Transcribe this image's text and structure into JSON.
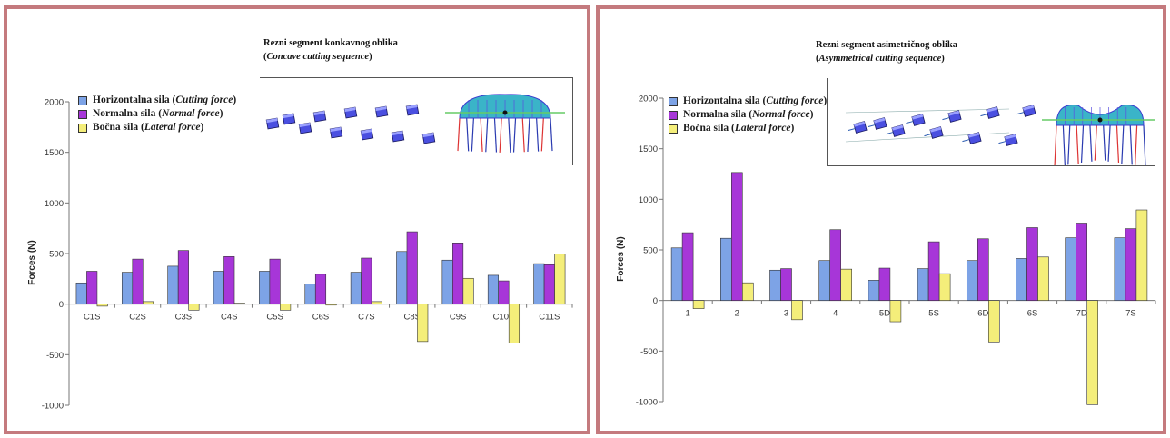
{
  "colors": {
    "horizontal": "#7da3e6",
    "normal": "#a736d8",
    "lateral": "#f4ee7a",
    "border": "#c47a7e"
  },
  "chart_data": [
    {
      "type": "bar",
      "inset": {
        "title": "Rezni segment konkavnog oblika",
        "subtitle_open": "(",
        "subtitle": "Concave cutting sequence",
        "subtitle_close": ")"
      },
      "legend": [
        {
          "label": "Horizontalna sila",
          "label_italic": "Cutting force"
        },
        {
          "label": "Normalna sila",
          "label_italic": "Normal force"
        },
        {
          "label": "Bočna sila",
          "label_italic": "Lateral force"
        }
      ],
      "ylabel": "Forces (N)",
      "ylim": [
        -1000,
        2000
      ],
      "yticks": [
        -1000,
        -500,
        0,
        500,
        1000,
        1500,
        2000
      ],
      "categories": [
        "C1S",
        "C2S",
        "C3S",
        "C4S",
        "C5S",
        "C6S",
        "C7S",
        "C8S",
        "C9S",
        "C10S",
        "C11S"
      ],
      "series": [
        {
          "name": "Horizontalna sila (Cutting force)",
          "values": [
            210,
            315,
            375,
            325,
            325,
            200,
            315,
            520,
            435,
            285,
            400
          ]
        },
        {
          "name": "Normalna sila (Normal force)",
          "values": [
            325,
            445,
            530,
            470,
            445,
            295,
            455,
            715,
            605,
            230,
            390
          ]
        },
        {
          "name": "Bočna sila (Lateral force)",
          "values": [
            -20,
            25,
            -60,
            10,
            -60,
            -10,
            25,
            -370,
            255,
            -385,
            495
          ]
        }
      ]
    },
    {
      "type": "bar",
      "inset": {
        "title": "Rezni segment asimetričnog oblika",
        "subtitle_open": "(",
        "subtitle": "Asymmetrical cutting sequence",
        "subtitle_close": ")"
      },
      "legend": [
        {
          "label": "Horizontalna sila",
          "label_italic": "Cutting force"
        },
        {
          "label": "Normalna sila",
          "label_italic": "Normal force"
        },
        {
          "label": "Bočna sila",
          "label_italic": "Lateral force"
        }
      ],
      "ylabel": "Forces (N)",
      "ylim": [
        -1000,
        2000
      ],
      "yticks": [
        -1000,
        -500,
        0,
        500,
        1000,
        1500,
        2000
      ],
      "categories": [
        "1",
        "2",
        "3",
        "4",
        "5D",
        "5S",
        "6D",
        "6S",
        "7D",
        "7S"
      ],
      "series": [
        {
          "name": "Horizontalna sila (Cutting force)",
          "values": [
            520,
            615,
            300,
            395,
            200,
            315,
            395,
            415,
            620,
            620
          ]
        },
        {
          "name": "Normalna sila (Normal force)",
          "values": [
            670,
            1265,
            315,
            700,
            320,
            580,
            610,
            720,
            765,
            710
          ]
        },
        {
          "name": "Bočna sila (Lateral force)",
          "values": [
            -80,
            175,
            -190,
            310,
            -210,
            265,
            -410,
            430,
            -1030,
            895
          ]
        }
      ]
    }
  ]
}
